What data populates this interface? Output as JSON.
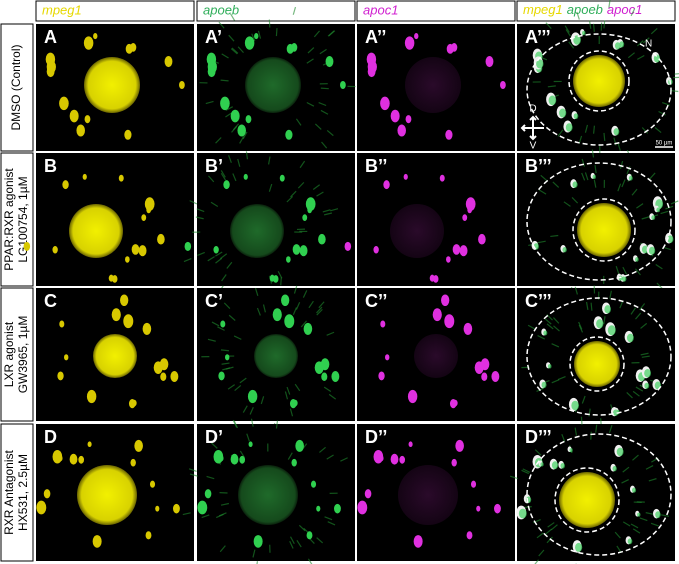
{
  "column_headers": [
    "mpeg1",
    "apoeb",
    "apoc1"
  ],
  "merge_header": [
    "mpeg1",
    "apoeb",
    "apoc1"
  ],
  "rows": [
    {
      "label": [
        "DMSO (Control)"
      ],
      "panels": [
        "A",
        "A’",
        "A’’",
        "A’’’"
      ]
    },
    {
      "label": [
        "PPAR:RXR agonist",
        "LG100754, 1µM"
      ],
      "panels": [
        "B",
        "B’",
        "B’’",
        "B’’’"
      ]
    },
    {
      "label": [
        "LXR agonist",
        "GW3965, 1µM"
      ],
      "panels": [
        "C",
        "C’",
        "C’’",
        "C’’’"
      ]
    },
    {
      "label": [
        "RXR Antagonist",
        "HX531, 2.5µM"
      ],
      "panels": [
        "D",
        "D’",
        "D’’",
        "D’’’"
      ]
    }
  ],
  "annotations": {
    "nasal": "N",
    "dorsal": "D",
    "ventral": "V",
    "scale_bar": "50 µm"
  }
}
